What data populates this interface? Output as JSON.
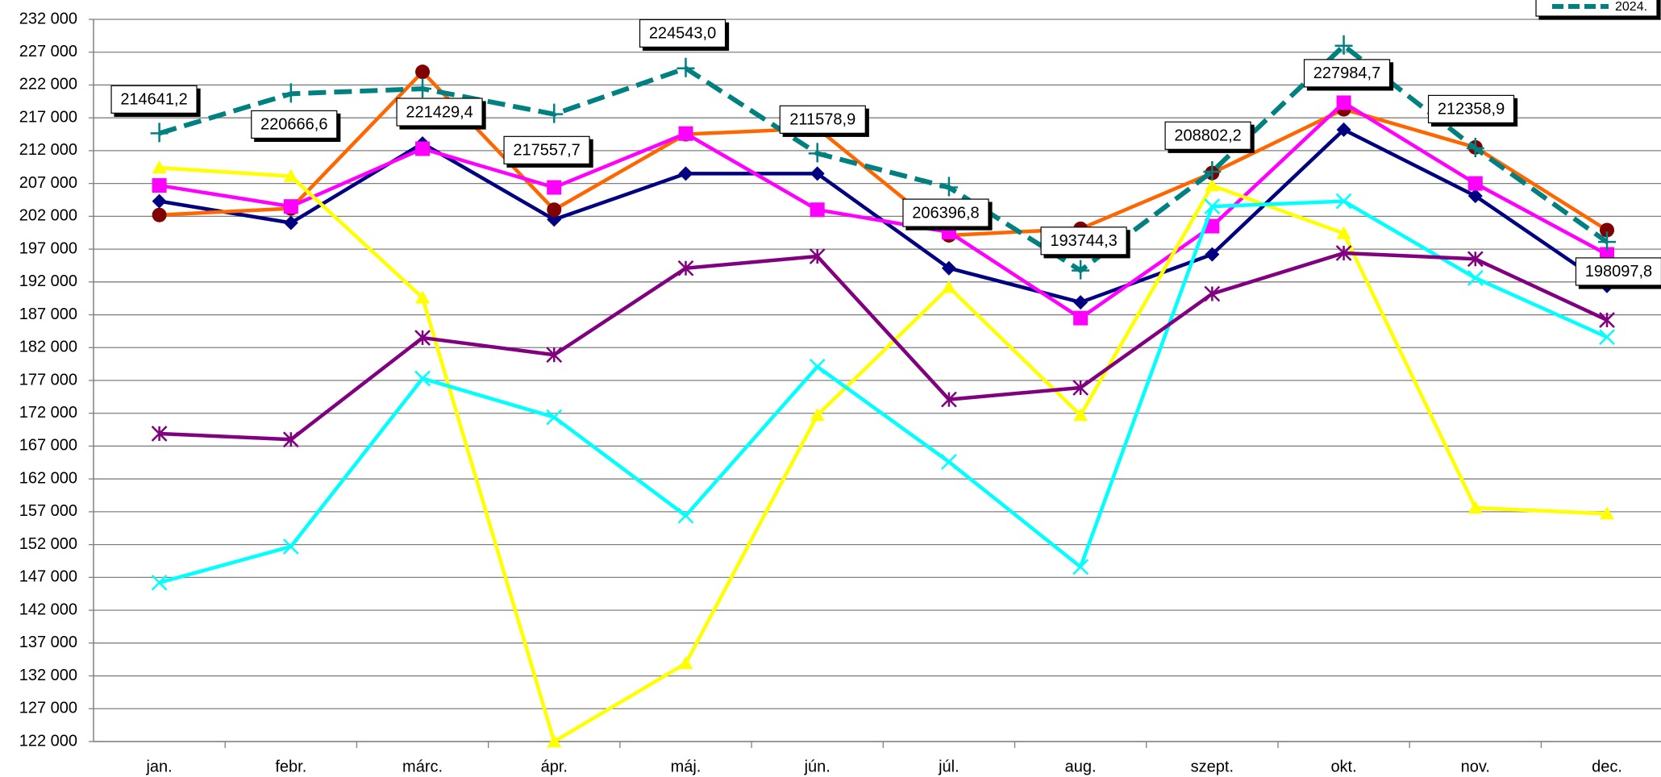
{
  "chart_data": {
    "type": "line",
    "categories": [
      "jan.",
      "febr.",
      "márc.",
      "ápr.",
      "máj.",
      "jún.",
      "júl.",
      "aug.",
      "szept.",
      "okt.",
      "nov.",
      "dec."
    ],
    "ylim": [
      122000,
      232000
    ],
    "yticks": [
      {
        "value": 122000,
        "label": "122 000"
      },
      {
        "value": 127000,
        "label": "127 000"
      },
      {
        "value": 132000,
        "label": "132 000"
      },
      {
        "value": 137000,
        "label": "137 000"
      },
      {
        "value": 142000,
        "label": "142 000"
      },
      {
        "value": 147000,
        "label": "147 000"
      },
      {
        "value": 152000,
        "label": "152 000"
      },
      {
        "value": 157000,
        "label": "157 000"
      },
      {
        "value": 162000,
        "label": "162 000"
      },
      {
        "value": 167000,
        "label": "167 000"
      },
      {
        "value": 172000,
        "label": "172 000"
      },
      {
        "value": 177000,
        "label": "177 000"
      },
      {
        "value": 182000,
        "label": "182 000"
      },
      {
        "value": 187000,
        "label": "187 000"
      },
      {
        "value": 192000,
        "label": "192 000"
      },
      {
        "value": 197000,
        "label": "197 000"
      },
      {
        "value": 202000,
        "label": "202 000"
      },
      {
        "value": 207000,
        "label": "207 000"
      },
      {
        "value": 212000,
        "label": "212 000"
      },
      {
        "value": 217000,
        "label": "217 000"
      },
      {
        "value": 222000,
        "label": "222 000"
      },
      {
        "value": 227000,
        "label": "227 000"
      },
      {
        "value": 232000,
        "label": "232 000"
      }
    ],
    "grid": true,
    "legend": "top-right",
    "series": [
      {
        "color": "#000080",
        "marker": "diamond",
        "values": [
          204300,
          201000,
          213100,
          201500,
          208500,
          208500,
          194100,
          188900,
          196200,
          215200,
          205100,
          191400
        ]
      },
      {
        "color": "#ff6600",
        "marker": "circle",
        "marker_color": "#800000",
        "values": [
          202200,
          203200,
          224000,
          203000,
          214500,
          215400,
          199100,
          200100,
          208600,
          218300,
          212500,
          199900
        ]
      },
      {
        "color": "#ff00ff",
        "marker": "square",
        "values": [
          206700,
          203500,
          212300,
          206400,
          214600,
          203000,
          199600,
          186500,
          200500,
          219300,
          207000,
          196200
        ]
      },
      {
        "color": "#ffff00",
        "marker": "triangle",
        "values": [
          209400,
          208100,
          189600,
          122000,
          133900,
          171700,
          191200,
          171700,
          206700,
          199400,
          157600,
          156700
        ]
      },
      {
        "color": "#00ffff",
        "marker": "x",
        "values": [
          146200,
          151700,
          177300,
          171400,
          156400,
          179100,
          164600,
          148600,
          203500,
          204300,
          192600,
          183600
        ]
      },
      {
        "color": "#800080",
        "marker": "asterisk",
        "values": [
          168900,
          168000,
          183500,
          180900,
          194100,
          195900,
          174100,
          175900,
          190200,
          196400,
          195500,
          186200
        ]
      },
      {
        "name": "2024.",
        "color": "#008080",
        "marker": "plus",
        "dashed": true,
        "values": [
          214641.2,
          220666.6,
          221429.4,
          217557.7,
          224543.0,
          211578.9,
          206396.8,
          193744.3,
          208802.2,
          227984.7,
          212358.9,
          198097.8
        ],
        "value_labels": [
          "214641,2",
          "220666,6",
          "221429,4",
          "217557,7",
          "224543,0",
          "211578,9",
          "206396,8",
          "193744,3",
          "208802,2",
          "227984,7",
          "212358,9",
          "198097,8"
        ]
      }
    ]
  }
}
